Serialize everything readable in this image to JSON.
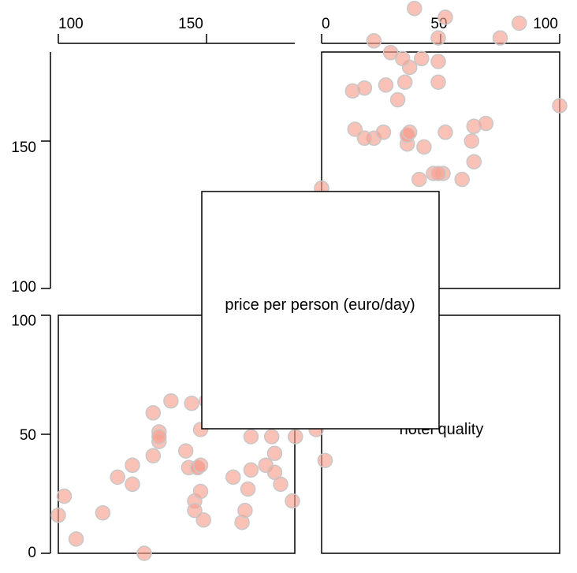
{
  "colors": {
    "point_fill": "#f8a090",
    "point_stroke": "#c8c8c8"
  },
  "chart_data": {
    "type": "scatter",
    "variables": [
      "price per person (euro/day)",
      "hotel quality"
    ],
    "top_axis_ticks_left": [
      "100",
      "150"
    ],
    "top_axis_ticks_right": [
      "0",
      "50",
      "100"
    ],
    "left_axis_ticks_top": [
      "100",
      "150"
    ],
    "left_axis_ticks_bottom": [
      "0",
      "50",
      "100"
    ],
    "domain_price": [
      80,
      180
    ],
    "domain_quality": [
      0,
      100
    ],
    "points": [
      {
        "price": 80,
        "quality": 16
      },
      {
        "price": 82,
        "quality": 24
      },
      {
        "price": 86,
        "quality": 6
      },
      {
        "price": 95,
        "quality": 17
      },
      {
        "price": 100,
        "quality": 32
      },
      {
        "price": 105,
        "quality": 37
      },
      {
        "price": 105,
        "quality": 29
      },
      {
        "price": 109,
        "quality": 0
      },
      {
        "price": 112,
        "quality": 59
      },
      {
        "price": 112,
        "quality": 41
      },
      {
        "price": 114,
        "quality": 51
      },
      {
        "price": 114,
        "quality": 47
      },
      {
        "price": 114,
        "quality": 49
      },
      {
        "price": 118,
        "quality": 64
      },
      {
        "price": 123,
        "quality": 43
      },
      {
        "price": 124,
        "quality": 36
      },
      {
        "price": 125,
        "quality": 63
      },
      {
        "price": 126,
        "quality": 22
      },
      {
        "price": 126,
        "quality": 18
      },
      {
        "price": 127,
        "quality": 36
      },
      {
        "price": 127,
        "quality": 36
      },
      {
        "price": 128,
        "quality": 37
      },
      {
        "price": 128,
        "quality": 26
      },
      {
        "price": 128,
        "quality": 52
      },
      {
        "price": 129,
        "quality": 14
      },
      {
        "price": 130,
        "quality": 64
      },
      {
        "price": 131,
        "quality": 69
      },
      {
        "price": 137,
        "quality": 100
      },
      {
        "price": 139,
        "quality": 32
      },
      {
        "price": 142,
        "quality": 13
      },
      {
        "price": 143,
        "quality": 18
      },
      {
        "price": 144,
        "quality": 27
      },
      {
        "price": 145,
        "quality": 49
      },
      {
        "price": 145,
        "quality": 35
      },
      {
        "price": 150,
        "quality": 37
      },
      {
        "price": 152,
        "quality": 49
      },
      {
        "price": 153,
        "quality": 42
      },
      {
        "price": 153,
        "quality": 34
      },
      {
        "price": 155,
        "quality": 29
      },
      {
        "price": 159,
        "quality": 22
      },
      {
        "price": 160,
        "quality": 49
      },
      {
        "price": 167,
        "quality": 52
      },
      {
        "price": 170,
        "quality": 39
      },
      {
        "price": 165,
        "quality": 83
      },
      {
        "price": 160,
        "quality": 75
      }
    ]
  }
}
